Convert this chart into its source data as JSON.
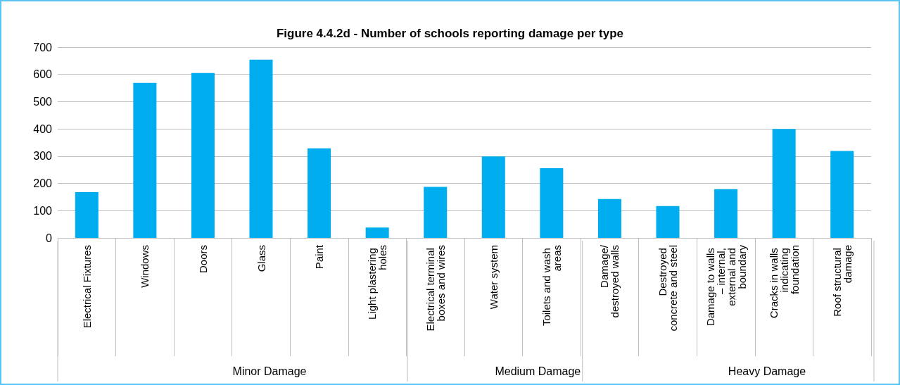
{
  "chart_data": {
    "type": "bar",
    "title": "Figure 4.4.2d - Number of schools reporting damage per type",
    "categories": [
      "Electrical Fixtures",
      "Windows",
      "Doors",
      "Glass",
      "Paint",
      "Light plastering holes",
      "Electrical terminal boxes and wires",
      "Water system",
      "Toilets and wash areas",
      "Damage/destroyed walls",
      "Destroyed concrete and steel",
      "Damage to walls – internal, external and boundary",
      "Cracks in walls indicating foundation",
      "Roof structural damage"
    ],
    "values": [
      168,
      569,
      605,
      654,
      329,
      38,
      187,
      299,
      256,
      143,
      117,
      179,
      400,
      319
    ],
    "color": "#00aeef",
    "ylim": [
      0,
      700
    ],
    "yticks": [
      0,
      100,
      200,
      300,
      400,
      500,
      600,
      700
    ],
    "grid": "y",
    "annotations": [
      "Minor Damage",
      "Medium Damage",
      "Heavy Damage"
    ]
  }
}
